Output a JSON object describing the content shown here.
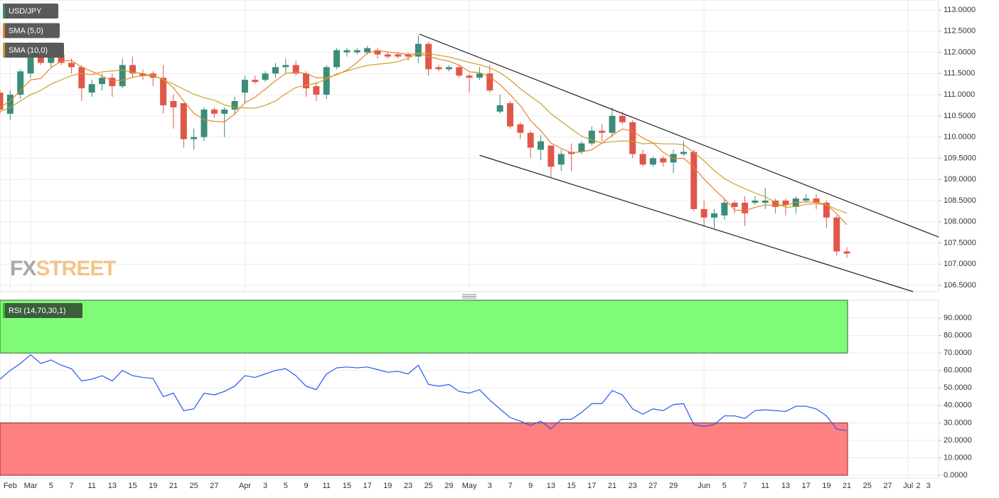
{
  "logo": {
    "fx": "FX",
    "street": "STREET"
  },
  "chart_data": [
    {
      "type": "candlestick",
      "categories": [
        null,
        "Feb",
        null,
        "Mar",
        null,
        "5",
        null,
        "7",
        null,
        "11",
        null,
        "13",
        null,
        "15",
        null,
        "19",
        null,
        "21",
        null,
        "25",
        null,
        "27",
        null,
        null,
        "Apr",
        null,
        "3",
        null,
        "5",
        null,
        "9",
        null,
        "11",
        null,
        "15",
        null,
        "17",
        null,
        "19",
        null,
        "23",
        null,
        "25",
        null,
        "29",
        null,
        "May",
        null,
        "3",
        null,
        "7",
        null,
        "9",
        null,
        "13",
        null,
        "15",
        null,
        "17",
        null,
        "21",
        null,
        "23",
        null,
        "27",
        null,
        "29",
        null,
        null,
        "Jun",
        null,
        "5",
        null,
        "7",
        null,
        "11",
        null,
        "13",
        null,
        "17",
        null,
        "19",
        null,
        "21",
        null,
        "25",
        null,
        "27",
        null,
        "Jul",
        "2",
        "3"
      ],
      "series": [
        {
          "name": "USD/JPY",
          "kind": "candle",
          "color": "#3b8c78",
          "up_color": "#3b8c78",
          "down_color": "#e0574a",
          "open": [
            111.05,
            110.55,
            111.0,
            111.5,
            111.95,
            111.75,
            111.95,
            111.75,
            111.65,
            111.05,
            111.25,
            111.4,
            111.2,
            111.7,
            111.5,
            111.5,
            111.4,
            110.85,
            110.8,
            109.95,
            110.0,
            110.65,
            110.55,
            110.65,
            111.05,
            111.35,
            111.35,
            111.5,
            111.65,
            111.7,
            111.5,
            111.2,
            111.0,
            111.65,
            112.0,
            112.0,
            112.0,
            112.05,
            111.95,
            111.95,
            111.95,
            111.9,
            112.2,
            111.65,
            111.6,
            111.65,
            111.45,
            111.4,
            111.5,
            110.6,
            110.8,
            110.3,
            110.1,
            109.7,
            109.8,
            109.35,
            109.65,
            109.65,
            109.85,
            110.15,
            110.1,
            110.5,
            110.35,
            109.6,
            109.35,
            109.5,
            109.4,
            109.6,
            109.65,
            108.3,
            108.1,
            108.15,
            108.45,
            108.45,
            108.45,
            108.45,
            108.5,
            108.5,
            108.35,
            108.5,
            108.55,
            108.45,
            108.1,
            107.3,
            null,
            null,
            null,
            null,
            null,
            null,
            null,
            null
          ],
          "high": [
            111.1,
            111.1,
            111.6,
            112.1,
            112.1,
            112.0,
            112.0,
            111.85,
            111.7,
            111.35,
            111.5,
            111.5,
            111.85,
            111.9,
            111.6,
            111.55,
            111.7,
            111.0,
            110.8,
            110.2,
            110.7,
            110.7,
            110.7,
            110.95,
            111.45,
            111.45,
            111.55,
            111.75,
            111.85,
            111.8,
            111.55,
            111.3,
            111.7,
            112.1,
            112.1,
            112.1,
            112.15,
            112.1,
            112.0,
            112.0,
            112.0,
            112.4,
            112.25,
            111.7,
            111.7,
            111.7,
            111.5,
            111.65,
            111.7,
            111.0,
            110.85,
            110.35,
            110.15,
            110.05,
            109.8,
            109.7,
            109.85,
            109.9,
            110.25,
            110.3,
            110.7,
            110.6,
            110.4,
            109.7,
            109.55,
            109.55,
            109.7,
            109.9,
            109.7,
            108.5,
            108.3,
            108.55,
            108.5,
            108.6,
            108.6,
            108.8,
            108.55,
            108.55,
            108.6,
            108.65,
            108.65,
            108.5,
            108.15,
            107.4,
            null,
            null,
            null,
            null,
            null,
            null,
            null,
            null
          ],
          "low": [
            110.55,
            110.4,
            110.9,
            111.4,
            111.7,
            111.65,
            111.7,
            111.5,
            110.85,
            110.95,
            111.1,
            110.95,
            111.15,
            111.4,
            111.35,
            111.2,
            110.55,
            110.2,
            109.75,
            109.7,
            109.9,
            110.45,
            110.0,
            110.55,
            110.8,
            111.25,
            111.3,
            111.4,
            111.5,
            111.45,
            110.95,
            110.85,
            110.9,
            111.6,
            111.9,
            111.95,
            111.95,
            111.85,
            111.85,
            111.85,
            111.8,
            111.75,
            111.45,
            111.55,
            111.55,
            111.4,
            111.05,
            111.35,
            111.05,
            110.55,
            110.2,
            109.95,
            109.5,
            109.45,
            109.05,
            109.2,
            109.2,
            109.6,
            109.8,
            109.9,
            110.0,
            110.3,
            109.5,
            109.3,
            109.3,
            109.3,
            109.15,
            109.55,
            108.25,
            107.9,
            107.85,
            108.05,
            108.2,
            107.9,
            108.4,
            108.3,
            108.2,
            108.15,
            108.2,
            108.45,
            108.3,
            107.85,
            107.2,
            107.15,
            null,
            null,
            null,
            null,
            null,
            null,
            null,
            null
          ],
          "close": [
            110.65,
            111.0,
            111.55,
            111.95,
            111.75,
            111.95,
            111.75,
            111.65,
            111.15,
            111.25,
            111.4,
            111.2,
            111.7,
            111.5,
            111.45,
            111.4,
            110.75,
            110.7,
            109.95,
            110.0,
            110.65,
            110.55,
            110.65,
            110.85,
            111.35,
            111.3,
            111.5,
            111.65,
            111.7,
            111.5,
            111.15,
            111.0,
            111.65,
            112.05,
            112.05,
            112.05,
            112.1,
            111.95,
            111.9,
            111.9,
            111.9,
            112.2,
            111.6,
            111.6,
            111.65,
            111.45,
            111.4,
            111.5,
            111.1,
            110.75,
            110.25,
            110.1,
            109.75,
            109.9,
            109.3,
            109.6,
            109.6,
            109.85,
            110.15,
            110.1,
            110.5,
            110.35,
            109.6,
            109.35,
            109.5,
            109.4,
            109.6,
            109.65,
            108.3,
            108.1,
            108.2,
            108.45,
            108.35,
            108.2,
            108.5,
            108.5,
            108.35,
            108.4,
            108.55,
            108.55,
            108.45,
            108.1,
            107.3,
            107.25,
            null,
            null,
            null,
            null,
            null,
            null,
            null,
            null
          ]
        },
        {
          "name": "SMA (5,0)",
          "kind": "line",
          "color": "#e8822a",
          "values": [
            110.7,
            110.85,
            111.1,
            111.35,
            111.38,
            111.64,
            111.79,
            111.81,
            111.65,
            111.55,
            111.44,
            111.33,
            111.34,
            111.41,
            111.45,
            111.45,
            111.36,
            111.16,
            110.85,
            110.56,
            110.41,
            110.37,
            110.36,
            110.54,
            110.81,
            110.94,
            111.13,
            111.33,
            111.5,
            111.53,
            111.5,
            111.4,
            111.4,
            111.47,
            111.58,
            111.76,
            111.98,
            112.04,
            112.01,
            111.98,
            111.95,
            111.97,
            111.9,
            111.84,
            111.79,
            111.7,
            111.54,
            111.52,
            111.42,
            111.24,
            111.0,
            110.74,
            110.39,
            110.15,
            109.86,
            109.73,
            109.63,
            109.65,
            109.7,
            109.86,
            110.04,
            110.19,
            110.14,
            109.98,
            109.86,
            109.64,
            109.49,
            109.5,
            109.29,
            109.01,
            108.77,
            108.54,
            108.28,
            108.26,
            108.34,
            108.4,
            108.38,
            108.39,
            108.46,
            108.47,
            108.46,
            108.41,
            108.19,
            107.93,
            null,
            null,
            null,
            null,
            null,
            null,
            null,
            null
          ]
        },
        {
          "name": "SMA (10,0)",
          "kind": "line",
          "color": "#c9a227",
          "values": [
            110.6,
            110.7,
            110.85,
            111.0,
            111.1,
            111.25,
            111.35,
            111.45,
            111.5,
            111.47,
            111.54,
            111.56,
            111.58,
            111.53,
            111.5,
            111.45,
            111.35,
            111.25,
            111.13,
            111.01,
            110.93,
            110.87,
            110.76,
            110.7,
            110.69,
            110.68,
            110.75,
            110.85,
            111.02,
            111.17,
            111.22,
            111.27,
            111.37,
            111.49,
            111.56,
            111.63,
            111.69,
            111.72,
            111.74,
            111.78,
            111.86,
            111.98,
            111.97,
            111.93,
            111.89,
            111.83,
            111.76,
            111.71,
            111.63,
            111.52,
            111.35,
            111.14,
            110.96,
            110.79,
            110.55,
            110.37,
            110.19,
            110.02,
            109.93,
            109.86,
            109.89,
            109.91,
            109.9,
            109.84,
            109.86,
            109.84,
            109.84,
            109.82,
            109.64,
            109.44,
            109.21,
            109.02,
            108.89,
            108.78,
            108.68,
            108.59,
            108.46,
            108.34,
            108.36,
            108.41,
            108.43,
            108.4,
            108.29,
            108.2,
            null,
            null,
            null,
            null,
            null,
            null,
            null,
            null
          ]
        }
      ],
      "trendlines": [
        {
          "x": [
            41.1,
            92
          ],
          "y": [
            112.43,
            107.64
          ],
          "color": "#222222"
        },
        {
          "x": [
            47,
            89.5
          ],
          "y": [
            109.57,
            106.35
          ],
          "color": "#222222"
        }
      ],
      "ylim": [
        106.35,
        113.235
      ],
      "yticks": [
        {
          "value": 106.5,
          "label": "106.5000"
        },
        {
          "value": 107.0,
          "label": "107.0000"
        },
        {
          "value": 107.5,
          "label": "107.5000"
        },
        {
          "value": 108.0,
          "label": "108.0000"
        },
        {
          "value": 108.5,
          "label": "108.5000"
        },
        {
          "value": 109.0,
          "label": "109.0000"
        },
        {
          "value": 109.5,
          "label": "109.5000"
        },
        {
          "value": 110.0,
          "label": "110.0000"
        },
        {
          "value": 110.5,
          "label": "110.5000"
        },
        {
          "value": 111.0,
          "label": "111.0000"
        },
        {
          "value": 111.5,
          "label": "111.5000"
        },
        {
          "value": 112.0,
          "label": "112.0000"
        },
        {
          "value": 112.5,
          "label": "112.5000"
        },
        {
          "value": 113.0,
          "label": "113.0000"
        }
      ],
      "grid": true
    },
    {
      "type": "line",
      "series": [
        {
          "name": "RSI (14,70,30,1)",
          "color": "#2458f0",
          "values": [
            55,
            60,
            64,
            69,
            64,
            66,
            63,
            61,
            54,
            55,
            57,
            54,
            60,
            57,
            56,
            55.5,
            45,
            47,
            37,
            38,
            47,
            46,
            48,
            51,
            57,
            56,
            58,
            60,
            61,
            57,
            51,
            49,
            58,
            61.5,
            62,
            61.5,
            62,
            60.5,
            59,
            59.5,
            58,
            63,
            52,
            51,
            52,
            48,
            47,
            49,
            43,
            38,
            33,
            31,
            28.5,
            31,
            26.5,
            32,
            32,
            36,
            41,
            41,
            48.5,
            46,
            38,
            35,
            38,
            37,
            40.5,
            41,
            29,
            28,
            29,
            34,
            34,
            32.5,
            37,
            37.5,
            37,
            36.5,
            39.5,
            39.5,
            38,
            34,
            26.5,
            25.5,
            null,
            null,
            null,
            null,
            null,
            null,
            null,
            null
          ]
        }
      ],
      "overbought": 70,
      "oversold": 30,
      "overbought_color": "#80fb78",
      "oversold_color": "#ff8080",
      "ylim": [
        -1.6,
        100.2
      ],
      "yticks": [
        {
          "value": 0,
          "label": "0.0000"
        },
        {
          "value": 10,
          "label": "10.0000"
        },
        {
          "value": 20,
          "label": "20.0000"
        },
        {
          "value": 30,
          "label": "30.0000"
        },
        {
          "value": 40,
          "label": "40.0000"
        },
        {
          "value": 50,
          "label": "50.0000"
        },
        {
          "value": 60,
          "label": "60.0000"
        },
        {
          "value": 70,
          "label": "70.0000"
        },
        {
          "value": 80,
          "label": "80.0000"
        },
        {
          "value": 90,
          "label": "90.0000"
        }
      ],
      "grid": true
    }
  ]
}
